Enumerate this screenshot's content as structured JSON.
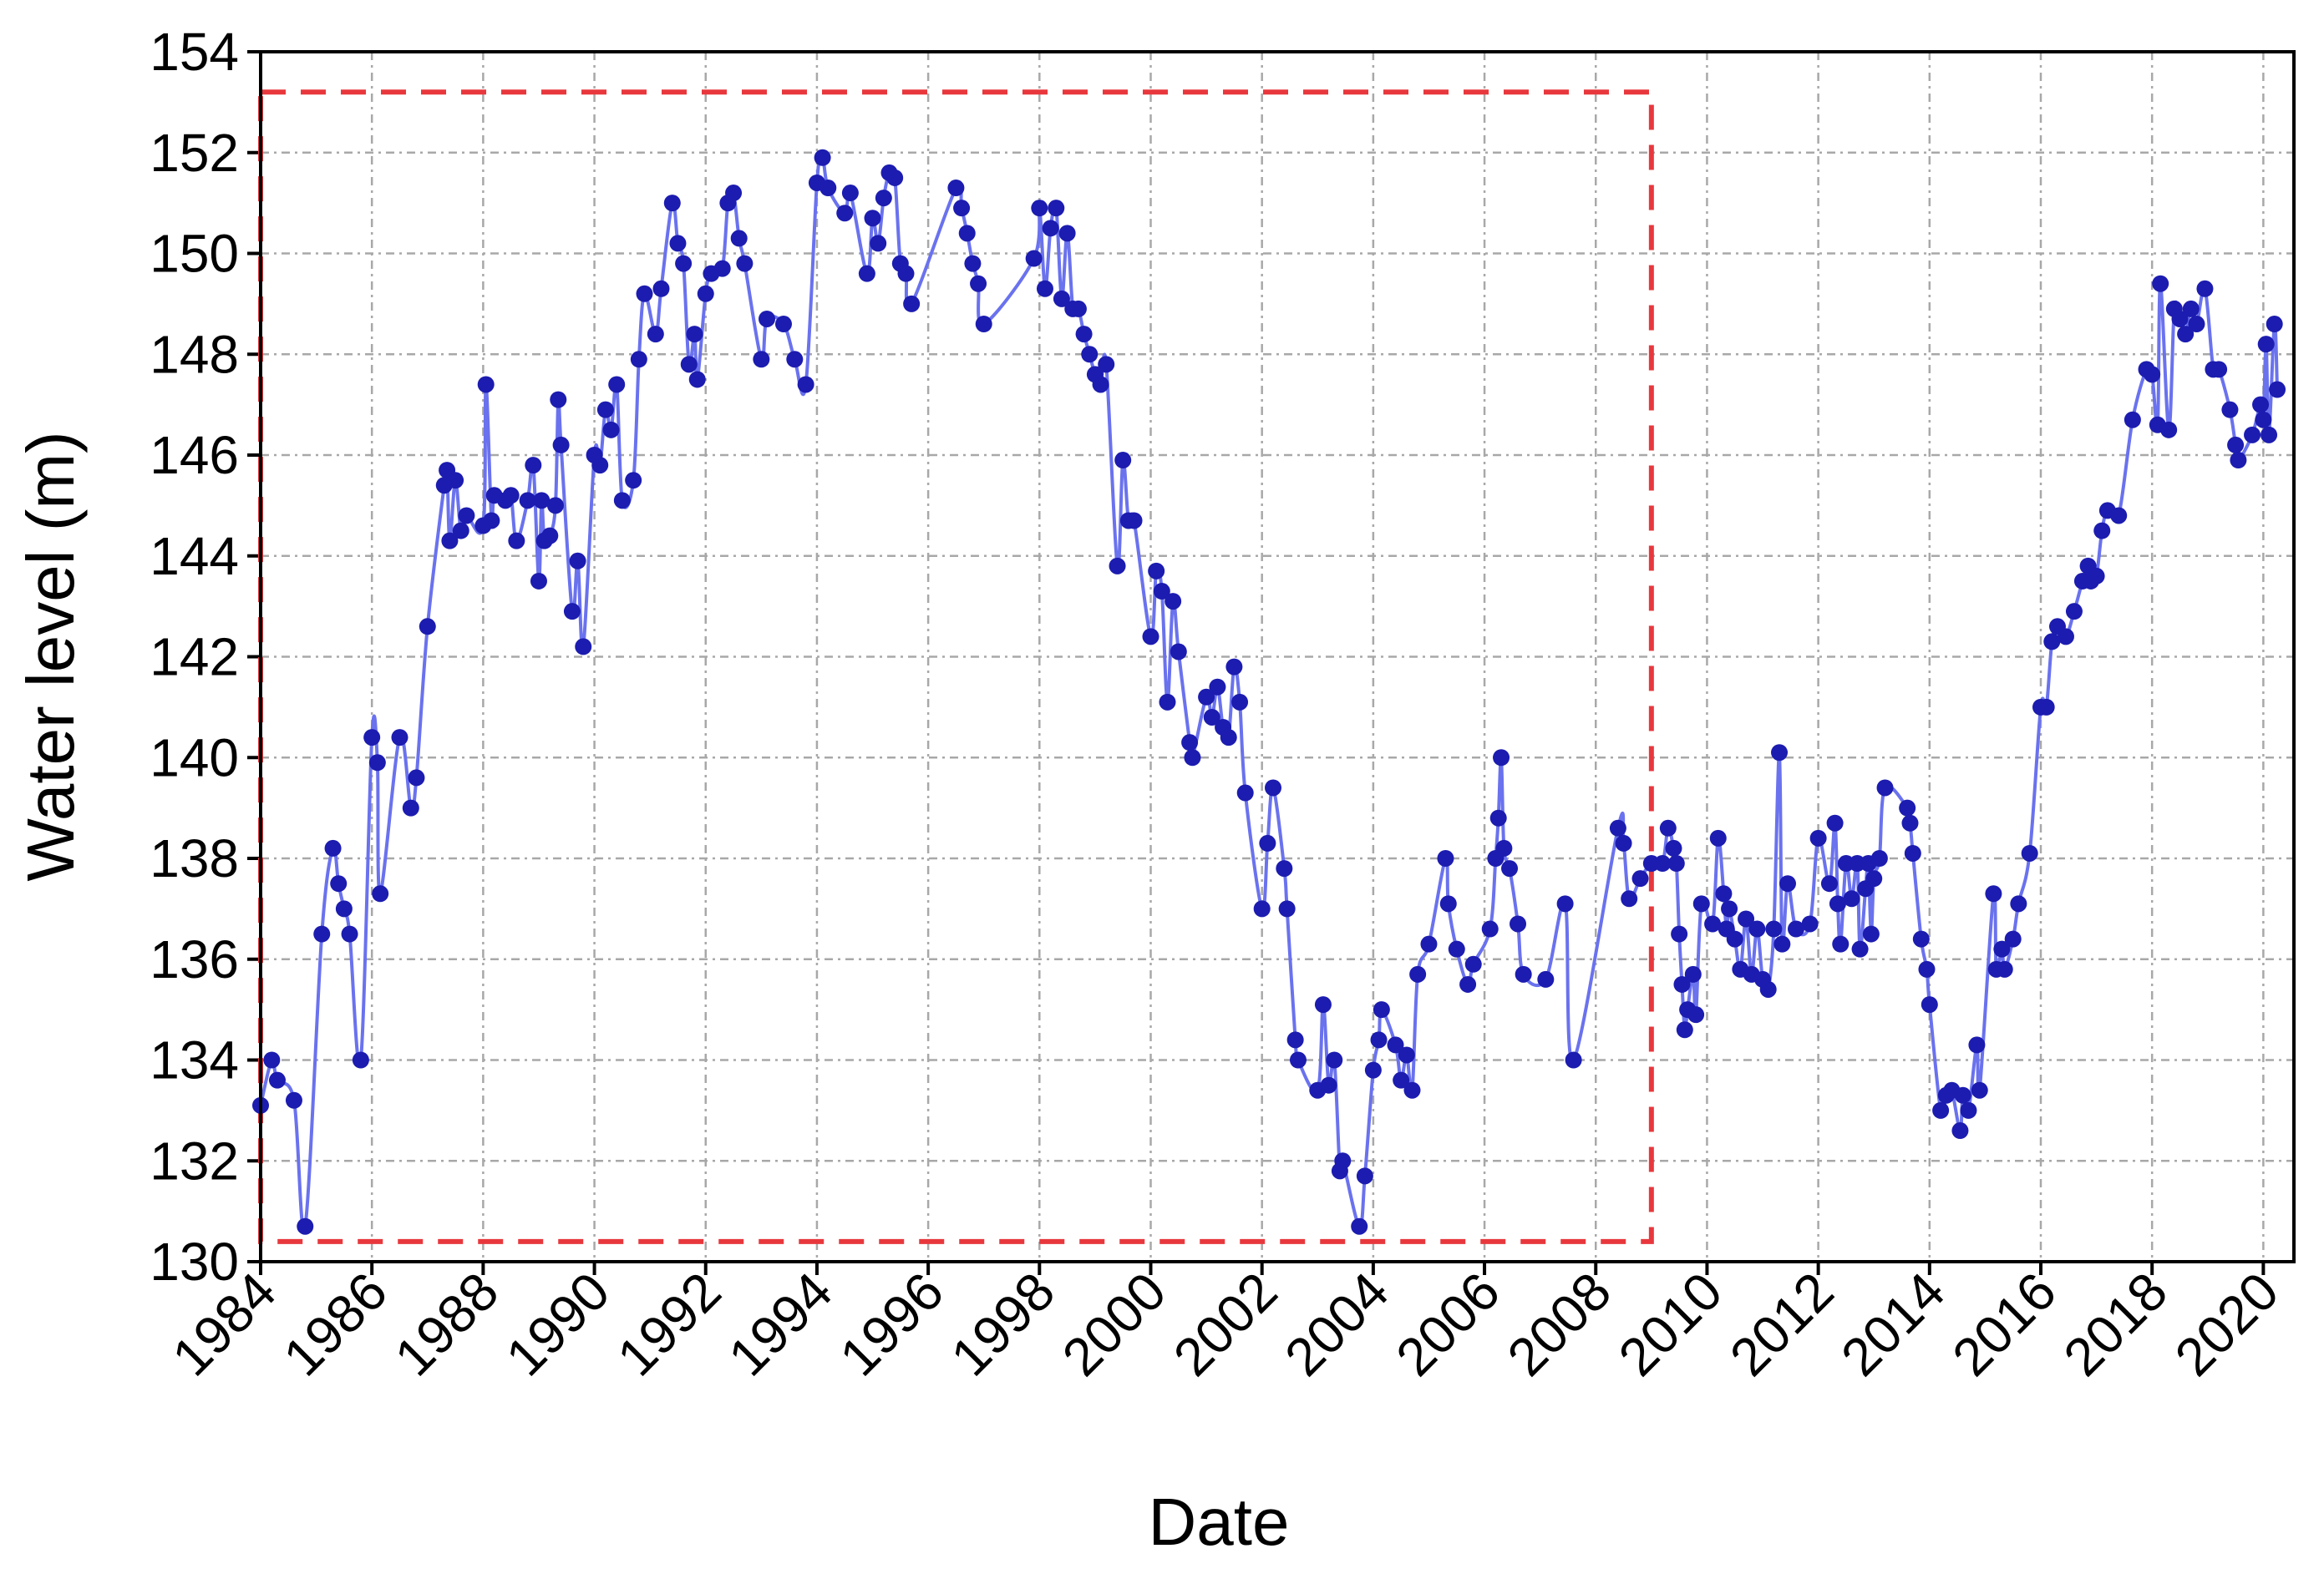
{
  "chart_data": {
    "type": "line",
    "x_label": "Date",
    "y_label": "Water level (m)",
    "xlim": [
      1984,
      2020.55
    ],
    "ylim": [
      130,
      154
    ],
    "xticks": [
      1984,
      1986,
      1988,
      1990,
      1992,
      1994,
      1996,
      1998,
      2000,
      2002,
      2004,
      2006,
      2008,
      2010,
      2012,
      2014,
      2016,
      2018,
      2020
    ],
    "yticks": [
      130,
      132,
      134,
      136,
      138,
      140,
      142,
      144,
      146,
      148,
      150,
      152,
      154
    ],
    "grid": true,
    "highlight": {
      "xlim": [
        1984,
        2009
      ],
      "ylim": [
        130.4,
        153.2
      ],
      "color": "#e8383d"
    },
    "series": [
      {
        "color": "#1c1cb0",
        "line_color": "#6a72ee",
        "x": [
          1984.0,
          1984.2,
          1984.3,
          1984.6,
          1984.8,
          1985.1,
          1985.3,
          1985.4,
          1985.5,
          1985.6,
          1985.8,
          1986.0,
          1986.1,
          1986.15,
          1986.5,
          1986.7,
          1986.8,
          1987.0,
          1987.3,
          1987.35,
          1987.4,
          1987.5,
          1987.6,
          1987.7,
          1988.0,
          1988.05,
          1988.15,
          1988.2,
          1988.4,
          1988.5,
          1988.6,
          1988.8,
          1988.9,
          1989.0,
          1989.05,
          1989.1,
          1989.2,
          1989.3,
          1989.35,
          1989.4,
          1989.6,
          1989.7,
          1989.8,
          1990.0,
          1990.1,
          1990.2,
          1990.3,
          1990.4,
          1990.5,
          1990.7,
          1990.8,
          1990.9,
          1991.1,
          1991.2,
          1991.4,
          1991.5,
          1991.6,
          1991.7,
          1991.8,
          1991.85,
          1992.0,
          1992.1,
          1992.3,
          1992.4,
          1992.5,
          1992.6,
          1992.7,
          1993.0,
          1993.1,
          1993.4,
          1993.6,
          1993.8,
          1994.0,
          1994.1,
          1994.2,
          1994.5,
          1994.6,
          1994.9,
          1995.0,
          1995.1,
          1995.2,
          1995.3,
          1995.4,
          1995.5,
          1995.6,
          1995.7,
          1996.5,
          1996.6,
          1996.7,
          1996.8,
          1996.9,
          1997.0,
          1997.9,
          1998.0,
          1998.1,
          1998.2,
          1998.3,
          1998.4,
          1998.5,
          1998.6,
          1998.7,
          1998.8,
          1998.9,
          1999.0,
          1999.1,
          1999.2,
          1999.4,
          1999.5,
          1999.6,
          1999.7,
          2000.0,
          2000.1,
          2000.2,
          2000.3,
          2000.4,
          2000.5,
          2000.7,
          2000.75,
          2001.0,
          2001.1,
          2001.2,
          2001.3,
          2001.4,
          2001.5,
          2001.6,
          2001.7,
          2002.0,
          2002.1,
          2002.2,
          2002.4,
          2002.45,
          2002.6,
          2002.65,
          2003.0,
          2003.1,
          2003.2,
          2003.3,
          2003.4,
          2003.45,
          2003.75,
          2003.85,
          2004.0,
          2004.1,
          2004.15,
          2004.4,
          2004.5,
          2004.6,
          2004.7,
          2004.8,
          2005.0,
          2005.3,
          2005.35,
          2005.5,
          2005.7,
          2005.8,
          2006.1,
          2006.2,
          2006.25,
          2006.3,
          2006.35,
          2006.45,
          2006.6,
          2006.7,
          2007.1,
          2007.45,
          2007.6,
          2008.4,
          2008.5,
          2008.6,
          2008.8,
          2009.0,
          2009.2,
          2009.3,
          2009.4,
          2009.45,
          2009.5,
          2009.55,
          2009.6,
          2009.65,
          2009.75,
          2009.8,
          2009.9,
          2010.1,
          2010.2,
          2010.3,
          2010.35,
          2010.4,
          2010.5,
          2010.6,
          2010.7,
          2010.8,
          2010.9,
          2011.0,
          2011.1,
          2011.2,
          2011.3,
          2011.35,
          2011.45,
          2011.6,
          2011.85,
          2012.0,
          2012.2,
          2012.3,
          2012.35,
          2012.4,
          2012.5,
          2012.6,
          2012.7,
          2012.75,
          2012.85,
          2012.9,
          2012.95,
          2013.0,
          2013.1,
          2013.2,
          2013.6,
          2013.65,
          2013.7,
          2013.85,
          2013.95,
          2014.0,
          2014.2,
          2014.3,
          2014.4,
          2014.55,
          2014.6,
          2014.7,
          2014.85,
          2014.9,
          2015.15,
          2015.2,
          2015.3,
          2015.35,
          2015.5,
          2015.6,
          2015.8,
          2016.0,
          2016.1,
          2016.2,
          2016.3,
          2016.45,
          2016.6,
          2016.75,
          2016.85,
          2016.9,
          2017.0,
          2017.1,
          2017.2,
          2017.4,
          2017.65,
          2017.9,
          2018.0,
          2018.1,
          2018.15,
          2018.3,
          2018.4,
          2018.5,
          2018.6,
          2018.7,
          2018.8,
          2018.95,
          2019.1,
          2019.2,
          2019.4,
          2019.5,
          2019.55,
          2019.8,
          2019.95,
          2020.0,
          2020.05,
          2020.1,
          2020.2,
          2020.25
        ],
        "values": [
          133.1,
          134.0,
          133.6,
          133.2,
          130.7,
          136.5,
          138.2,
          137.5,
          137.0,
          136.5,
          134.0,
          140.4,
          139.9,
          137.3,
          140.4,
          139.0,
          139.6,
          142.6,
          145.4,
          145.7,
          144.3,
          145.5,
          144.5,
          144.8,
          144.6,
          147.4,
          144.7,
          145.2,
          145.1,
          145.2,
          144.3,
          145.1,
          145.8,
          143.5,
          145.1,
          144.3,
          144.4,
          145.0,
          147.1,
          146.2,
          142.9,
          143.9,
          142.2,
          146.0,
          145.8,
          146.9,
          146.5,
          147.4,
          145.1,
          145.5,
          147.9,
          149.2,
          148.4,
          149.3,
          151.0,
          150.2,
          149.8,
          147.8,
          148.4,
          147.5,
          149.2,
          149.6,
          149.7,
          151.0,
          151.2,
          150.3,
          149.8,
          147.9,
          148.7,
          148.6,
          147.9,
          147.4,
          151.4,
          151.9,
          151.3,
          150.8,
          151.2,
          149.6,
          150.7,
          150.2,
          151.1,
          151.6,
          151.5,
          149.8,
          149.6,
          149.0,
          151.3,
          150.9,
          150.4,
          149.8,
          149.4,
          148.6,
          149.9,
          150.9,
          149.3,
          150.5,
          150.9,
          149.1,
          150.4,
          148.9,
          148.9,
          148.4,
          148.0,
          147.6,
          147.4,
          147.8,
          143.8,
          145.9,
          144.7,
          144.7,
          142.4,
          143.7,
          143.3,
          141.1,
          143.1,
          142.1,
          140.3,
          140.0,
          141.2,
          140.8,
          141.4,
          140.6,
          140.4,
          141.8,
          141.1,
          139.3,
          137.0,
          138.3,
          139.4,
          137.8,
          137.0,
          134.4,
          134.0,
          133.4,
          135.1,
          133.5,
          134.0,
          131.8,
          132.0,
          130.7,
          131.7,
          133.8,
          134.4,
          135.0,
          134.3,
          133.6,
          134.1,
          133.4,
          135.7,
          136.3,
          138.0,
          137.1,
          136.2,
          135.5,
          135.9,
          136.6,
          138.0,
          138.8,
          140.0,
          138.2,
          137.8,
          136.7,
          135.7,
          135.6,
          137.1,
          134.0,
          138.6,
          138.3,
          137.2,
          137.6,
          137.9,
          137.9,
          138.6,
          138.2,
          137.9,
          136.5,
          135.5,
          134.6,
          135.0,
          135.7,
          134.9,
          137.1,
          136.7,
          138.4,
          137.3,
          136.6,
          137.0,
          136.4,
          135.8,
          136.8,
          135.7,
          136.6,
          135.6,
          135.4,
          136.6,
          140.1,
          136.3,
          137.5,
          136.6,
          136.7,
          138.4,
          137.5,
          138.7,
          137.1,
          136.3,
          137.9,
          137.2,
          137.9,
          136.2,
          137.4,
          137.9,
          136.5,
          137.6,
          138.0,
          139.4,
          139.0,
          138.7,
          138.1,
          136.4,
          135.8,
          135.1,
          133.0,
          133.3,
          133.4,
          132.6,
          133.3,
          133.0,
          134.3,
          133.4,
          137.3,
          135.8,
          136.2,
          135.8,
          136.4,
          137.1,
          138.1,
          141.0,
          141.0,
          142.3,
          142.6,
          142.4,
          142.9,
          143.5,
          143.8,
          143.5,
          143.6,
          144.5,
          144.9,
          144.8,
          146.7,
          147.7,
          147.6,
          146.6,
          149.4,
          146.5,
          148.9,
          148.7,
          148.4,
          148.9,
          148.6,
          149.3,
          147.7,
          147.7,
          146.9,
          146.2,
          145.9,
          146.4,
          147.0,
          146.7,
          148.2,
          146.4,
          148.6,
          147.3
        ]
      }
    ]
  }
}
